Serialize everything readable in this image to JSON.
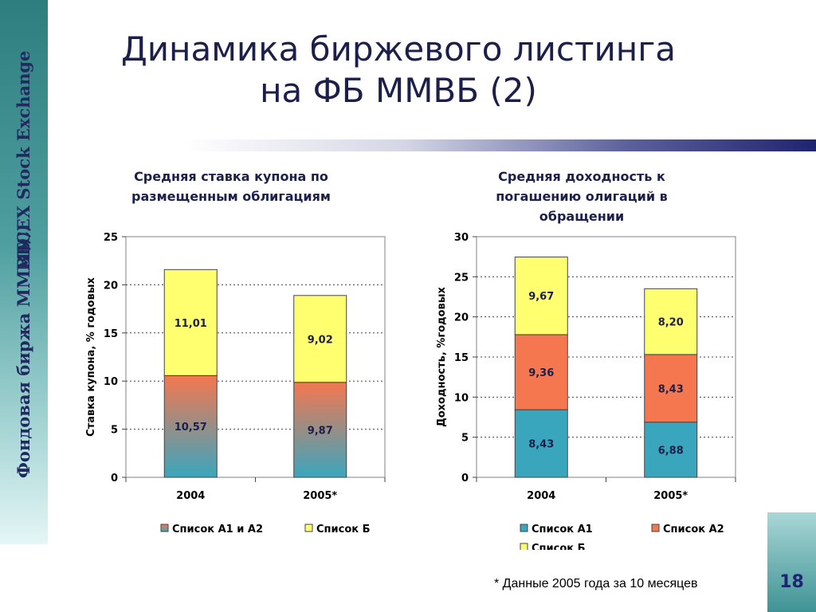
{
  "sidebar": {
    "brand_ru": "Фондовая биржа ММВБ",
    "brand_en": "MICEX Stock Exchange"
  },
  "title": {
    "line1": "Динамика биржевого листинга",
    "line2": "на ФБ ММВБ (2)"
  },
  "footnote": "* Данные 2005 года за 10 месяцев",
  "page_number": "18",
  "colors": {
    "a1": "#3aa6be",
    "a2": "#f4774f",
    "a12": "#f4774f",
    "b": "#ffff70",
    "navy": "#1f2470",
    "teal": "#2e7e80"
  },
  "chart_data": [
    {
      "type": "bar",
      "stacked": true,
      "title": "Средняя ставка купона по размещенным облигациям",
      "title_lines": [
        "Средняя ставка купона по",
        "размещенным облигациям"
      ],
      "xlabel": "",
      "ylabel": "Ставка купона, % годовых",
      "ylim": [
        0,
        25
      ],
      "yticks": [
        0,
        5,
        10,
        15,
        20,
        25
      ],
      "grid": true,
      "legend": "bottom",
      "categories": [
        "2004",
        "2005*"
      ],
      "series": [
        {
          "name": "Список А1 и А2",
          "values": [
            10.57,
            9.87
          ],
          "labels": [
            "10,57",
            "9,87"
          ],
          "color": "#f4774f",
          "gradient": true
        },
        {
          "name": "Список Б",
          "values": [
            11.01,
            9.02
          ],
          "labels": [
            "11,01",
            "9,02"
          ],
          "color": "#ffff70"
        }
      ]
    },
    {
      "type": "bar",
      "stacked": true,
      "title": "Средняя доходность к погашению олигаций в обращении",
      "title_lines": [
        "Средняя доходность к",
        "погашению олигаций в",
        "обращении"
      ],
      "xlabel": "",
      "ylabel": "Доходность, %годовых",
      "ylim": [
        0,
        30
      ],
      "yticks": [
        0,
        5,
        10,
        15,
        20,
        25,
        30
      ],
      "grid": true,
      "legend": "bottom",
      "categories": [
        "2004",
        "2005*"
      ],
      "series": [
        {
          "name": "Список А1",
          "values": [
            8.43,
            6.88
          ],
          "labels": [
            "8,43",
            "6,88"
          ],
          "color": "#3aa6be"
        },
        {
          "name": "Список А2",
          "values": [
            9.36,
            8.43
          ],
          "labels": [
            "9,36",
            "8,43"
          ],
          "color": "#f4774f"
        },
        {
          "name": "Список Б",
          "values": [
            9.67,
            8.2
          ],
          "labels": [
            "9,67",
            "8,20"
          ],
          "color": "#ffff70"
        }
      ]
    }
  ]
}
